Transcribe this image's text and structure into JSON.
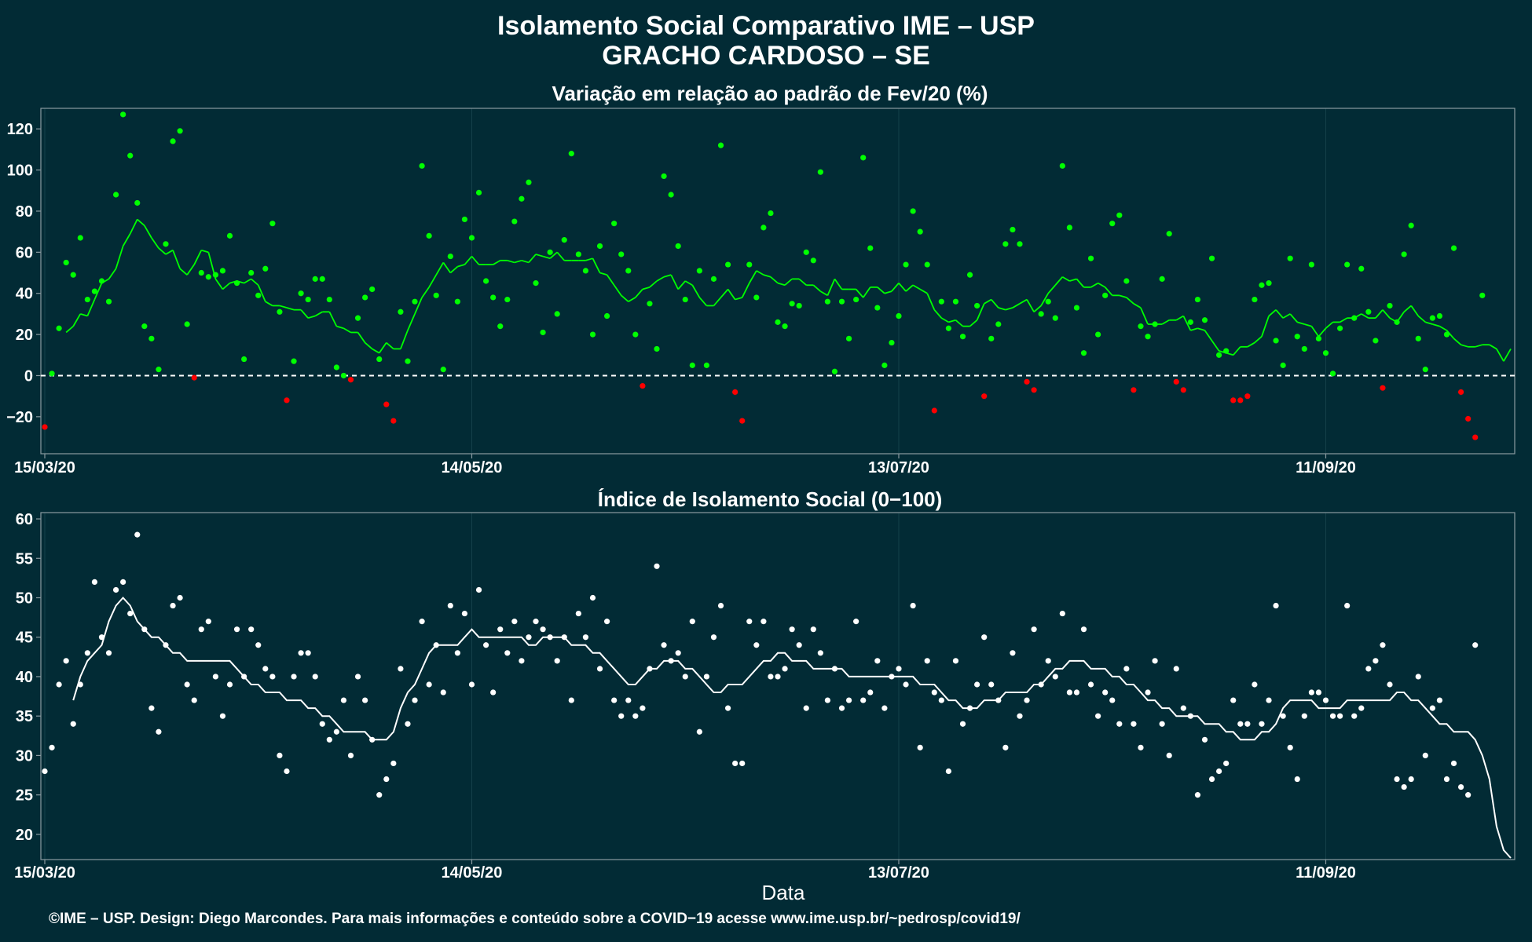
{
  "title_line1": "Isolamento Social Comparativo IME – USP",
  "title_line2": "GRACHO CARDOSO – SE",
  "xlabel": "Data",
  "credit": "©IME – USP. Design: Diego Marcondes. Para mais informações e conteúdo sobre a COVID−19 acesse www.ime.usp.br/~pedrosp/covid19/",
  "colors": {
    "background": "#022b35",
    "positive": "#00ff00",
    "negative": "#ff0000",
    "index": "#ffffff",
    "axis": "#8a9aa0"
  },
  "chart_data": [
    {
      "type": "scatter",
      "title": "Variação em relação ao padrão de Fev/20 (%)",
      "xlabel": "",
      "ylabel": "",
      "x_start": "15/03/20",
      "x_end": "07/10/20",
      "x_ticks": [
        "15/03/20",
        "14/05/20",
        "13/07/20",
        "11/09/20"
      ],
      "y_ticks": [
        -20,
        0,
        20,
        40,
        60,
        80,
        100,
        120
      ],
      "ylim": [
        -38,
        130
      ],
      "reference_line": 0,
      "series": [
        {
          "values": [
            -25,
            1,
            23,
            55,
            49,
            67,
            37,
            41,
            46,
            36,
            88,
            127,
            107,
            84,
            24,
            18,
            3,
            64,
            114,
            119,
            25,
            -1,
            50,
            48,
            49,
            51,
            68,
            45,
            8,
            50,
            39,
            52,
            74,
            31,
            -12,
            7,
            40,
            37,
            47,
            47,
            37,
            4,
            0,
            -2,
            28,
            38,
            42,
            8,
            -14,
            -22,
            31,
            7,
            36,
            102,
            68,
            39,
            3,
            58,
            36,
            76,
            67,
            89,
            46,
            38,
            24,
            37,
            75,
            86,
            94,
            45,
            21,
            60,
            30,
            66,
            108,
            59,
            51,
            20,
            63,
            29,
            74,
            59,
            51,
            20,
            -5,
            35,
            13,
            97,
            88,
            63,
            37,
            5,
            51,
            5,
            47,
            112,
            54,
            -8,
            -22,
            54,
            38,
            72,
            79,
            26,
            24,
            35,
            34,
            60,
            56,
            99,
            36,
            2,
            36,
            18,
            37,
            106,
            62,
            33,
            5,
            16,
            29,
            54,
            80,
            70,
            54,
            -17,
            36,
            23,
            36,
            19,
            49,
            34,
            -10,
            18,
            25,
            64,
            71,
            64,
            -3,
            -7,
            30,
            36,
            28,
            102,
            72,
            33,
            11,
            57,
            20,
            39,
            74,
            78,
            46,
            -7,
            24,
            19,
            25,
            47,
            69,
            -3,
            -7,
            26,
            37,
            27,
            57,
            10,
            12,
            -12,
            -12,
            -10,
            37,
            44,
            45,
            17,
            5,
            57,
            19,
            13,
            54,
            18,
            11,
            1,
            23,
            54,
            28,
            52,
            31,
            17,
            -6,
            34,
            26,
            59,
            73,
            18,
            3,
            28,
            29,
            20,
            62,
            -8,
            -21,
            -30,
            39
          ]
        },
        {
          "values": [
            21,
            24,
            30,
            29,
            37,
            45,
            47,
            52,
            63,
            69,
            76,
            73,
            67,
            62,
            59,
            61,
            52,
            49,
            54,
            61,
            60,
            47,
            42,
            45,
            46,
            45,
            47,
            44,
            36,
            34,
            34,
            33,
            32,
            32,
            28,
            29,
            31,
            31,
            24,
            23,
            21,
            21,
            16,
            13,
            11,
            16,
            13,
            13,
            22,
            30,
            38,
            43,
            49,
            55,
            50,
            53,
            54,
            58,
            54,
            54,
            54,
            56,
            56,
            55,
            56,
            55,
            59,
            58,
            57,
            60,
            56,
            56,
            56,
            56,
            57,
            50,
            49,
            44,
            39,
            36,
            38,
            42,
            43,
            46,
            48,
            49,
            42,
            46,
            44,
            38,
            34,
            34,
            38,
            42,
            37,
            38,
            45,
            51,
            49,
            48,
            45,
            44,
            47,
            47,
            44,
            44,
            41,
            39,
            47,
            42,
            42,
            42,
            38,
            43,
            43,
            40,
            41,
            45,
            41,
            44,
            42,
            40,
            32,
            28,
            26,
            27,
            24,
            24,
            27,
            35,
            37,
            33,
            32,
            33,
            35,
            37,
            31,
            34,
            40,
            44,
            48,
            46,
            47,
            43,
            43,
            45,
            43,
            39,
            39,
            38,
            35,
            33,
            25,
            25,
            25,
            27,
            27,
            29,
            22,
            23,
            22,
            17,
            12,
            11,
            10,
            14,
            14,
            16,
            19,
            29,
            32,
            28,
            30,
            26,
            25,
            24,
            19,
            23,
            26,
            26,
            28,
            28,
            30,
            28,
            28,
            32,
            28,
            26,
            31,
            34,
            29,
            26,
            25,
            24,
            22,
            18,
            15,
            14,
            14,
            15,
            15,
            13,
            7,
            13
          ]
        }
      ]
    },
    {
      "type": "scatter",
      "title": "Índice de Isolamento Social (0−100)",
      "xlabel": "Data",
      "ylabel": "",
      "x_start": "15/03/20",
      "x_end": "07/10/20",
      "x_ticks": [
        "15/03/20",
        "14/05/20",
        "13/07/20",
        "11/09/20"
      ],
      "y_ticks": [
        20,
        25,
        30,
        35,
        40,
        45,
        50,
        55,
        60
      ],
      "ylim": [
        16.8,
        60.8
      ],
      "series": [
        {
          "values": [
            28,
            31,
            39,
            42,
            34,
            39,
            43,
            52,
            45,
            43,
            51,
            52,
            48,
            58,
            46,
            36,
            33,
            44,
            49,
            50,
            39,
            37,
            46,
            47,
            40,
            35,
            39,
            46,
            40,
            46,
            44,
            41,
            40,
            30,
            28,
            40,
            43,
            43,
            40,
            34,
            32,
            33,
            37,
            30,
            40,
            37,
            32,
            25,
            27,
            29,
            41,
            34,
            37,
            47,
            39,
            44,
            38,
            49,
            43,
            48,
            39,
            51,
            44,
            38,
            46,
            43,
            47,
            42,
            45,
            47,
            46,
            45,
            42,
            45,
            37,
            48,
            45,
            50,
            41,
            47,
            37,
            35,
            37,
            35,
            36,
            41,
            54,
            44,
            42,
            43,
            40,
            47,
            33,
            40,
            45,
            49,
            36,
            29,
            29,
            47,
            44,
            47,
            40,
            40,
            41,
            46,
            44,
            36,
            46,
            43,
            37,
            41,
            36,
            37,
            47,
            37,
            38,
            42,
            36,
            40,
            41,
            39,
            49,
            31,
            42,
            38,
            37,
            28,
            42,
            34,
            36,
            39,
            45,
            39,
            37,
            31,
            43,
            35,
            37,
            46,
            39,
            42,
            40,
            48,
            38,
            38,
            46,
            39,
            35,
            38,
            37,
            34,
            41,
            34,
            31,
            38,
            42,
            34,
            30,
            41,
            36,
            35,
            25,
            32,
            27,
            28,
            29,
            37,
            34,
            34,
            39,
            34,
            37,
            49,
            35,
            31,
            27,
            35,
            38,
            38,
            37,
            35,
            35,
            49,
            35,
            36,
            41,
            42,
            44,
            39,
            27,
            26,
            27,
            40,
            30,
            36,
            37,
            27,
            29,
            26,
            25,
            44
          ]
        },
        {
          "values": [
            37,
            40,
            42,
            43,
            44,
            47,
            49,
            50,
            49,
            47,
            46,
            45,
            45,
            44,
            43,
            43,
            42,
            42,
            42,
            42,
            42,
            42,
            42,
            41,
            40,
            39,
            39,
            38,
            38,
            38,
            37,
            37,
            37,
            36,
            36,
            35,
            35,
            34,
            33,
            33,
            33,
            33,
            32,
            32,
            32,
            33,
            36,
            38,
            39,
            41,
            43,
            44,
            44,
            44,
            44,
            45,
            46,
            45,
            45,
            45,
            45,
            45,
            45,
            45,
            44,
            44,
            45,
            45,
            45,
            45,
            44,
            44,
            44,
            43,
            43,
            42,
            41,
            40,
            39,
            39,
            40,
            41,
            41,
            42,
            42,
            42,
            41,
            41,
            40,
            39,
            38,
            38,
            39,
            39,
            39,
            40,
            41,
            42,
            42,
            43,
            43,
            42,
            42,
            42,
            41,
            41,
            41,
            41,
            41,
            40,
            40,
            40,
            40,
            40,
            40,
            40,
            40,
            40,
            40,
            39,
            39,
            39,
            38,
            37,
            37,
            36,
            36,
            36,
            37,
            37,
            37,
            38,
            38,
            38,
            38,
            39,
            39,
            40,
            41,
            41,
            42,
            42,
            42,
            41,
            41,
            41,
            40,
            40,
            39,
            39,
            38,
            37,
            37,
            36,
            36,
            35,
            35,
            35,
            35,
            34,
            34,
            34,
            33,
            33,
            32,
            32,
            32,
            33,
            33,
            34,
            36,
            37,
            37,
            37,
            37,
            36,
            36,
            36,
            36,
            37,
            37,
            37,
            37,
            37,
            37,
            37,
            38,
            38,
            37,
            37,
            36,
            35,
            34,
            34,
            33,
            33,
            33,
            32,
            30,
            27,
            21,
            18,
            17
          ]
        }
      ]
    }
  ]
}
